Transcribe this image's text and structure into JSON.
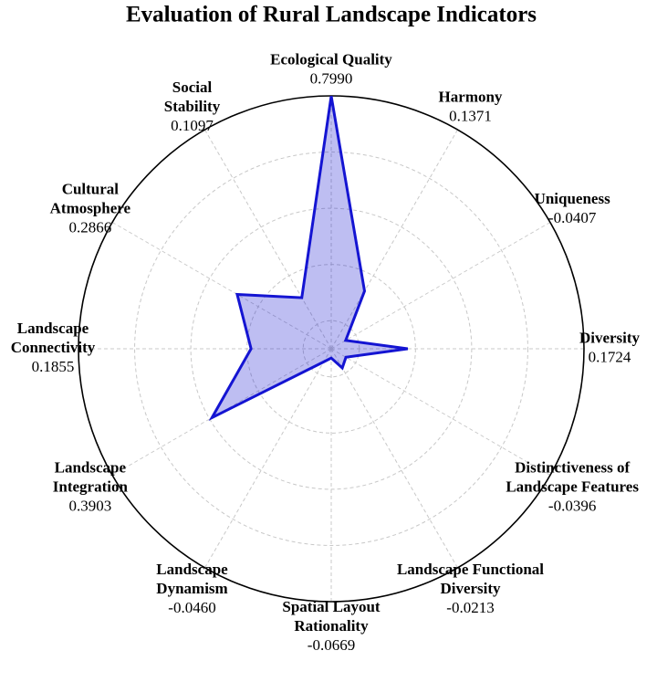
{
  "chart_data": {
    "type": "radar",
    "title": "Evaluation of Rural Landscape Indicators",
    "categories": [
      [
        "Ecological Quality"
      ],
      [
        "Harmony"
      ],
      [
        "Uniqueness"
      ],
      [
        "Diversity"
      ],
      [
        "Distinctiveness of",
        "Landscape Features"
      ],
      [
        "Landscape Functional",
        "Diversity"
      ],
      [
        "Spatial Layout",
        "Rationality"
      ],
      [
        "Landscape",
        "Dynamism"
      ],
      [
        "Landscape",
        "Integration"
      ],
      [
        "Landscape",
        "Connectivity"
      ],
      [
        "Cultural",
        "Atmosphere"
      ],
      [
        "Social",
        "Stability"
      ]
    ],
    "values": [
      0.799,
      0.1371,
      -0.0407,
      0.1724,
      -0.0396,
      -0.0213,
      -0.0669,
      -0.046,
      0.3903,
      0.1855,
      0.2866,
      0.1097
    ],
    "value_labels": [
      "0.7990",
      "0.1371",
      "-0.0407",
      "0.1724",
      "-0.0396",
      "-0.0213",
      "-0.0669",
      "-0.0460",
      "0.3903",
      "0.1855",
      "0.2866",
      "0.1097"
    ],
    "color": "#1414d2",
    "rlim": [
      -0.1,
      0.8
    ],
    "rticks": [
      0,
      0.2,
      0.4,
      0.6
    ],
    "grid": true
  }
}
